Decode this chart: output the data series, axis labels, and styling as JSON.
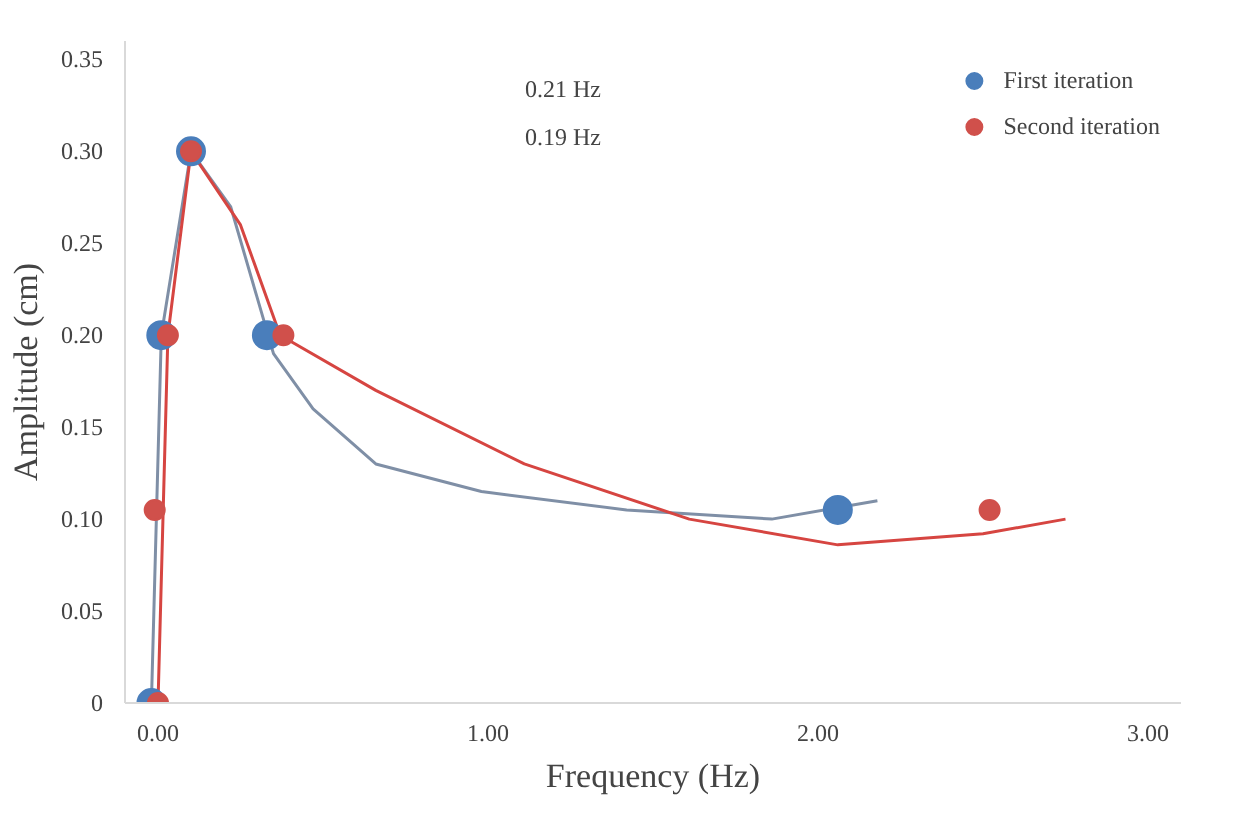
{
  "chart_data": {
    "type": "line",
    "xlabel": "Frequency (Hz)",
    "ylabel": "Amplitude (cm)",
    "xlim": [
      -0.1,
      3.1
    ],
    "ylim": [
      0,
      0.36
    ],
    "xticks": [
      {
        "value": 0,
        "label": "0.00"
      },
      {
        "value": 1,
        "label": "1.00"
      },
      {
        "value": 2,
        "label": "2.00"
      },
      {
        "value": 3,
        "label": "3.00"
      }
    ],
    "yticks": [
      {
        "value": 0,
        "label": "0"
      },
      {
        "value": 0.05,
        "label": "0.05"
      },
      {
        "value": 0.1,
        "label": "0.10"
      },
      {
        "value": 0.15,
        "label": "0.15"
      },
      {
        "value": 0.2,
        "label": "0.20"
      },
      {
        "value": 0.25,
        "label": "0.25"
      },
      {
        "value": 0.3,
        "label": "0.30"
      },
      {
        "value": 0.35,
        "label": "0.35"
      }
    ],
    "grid": false,
    "legend": "top right",
    "marker": "none",
    "annotations": [
      "0.21 Hz",
      "0.19 Hz"
    ],
    "series": [
      {
        "color": "#7f8fa6",
        "x": [
          -0.02,
          0.01,
          0.1,
          0.22,
          0.35,
          0.47,
          0.66,
          0.98,
          1.42,
          1.86,
          2.18
        ],
        "values": [
          0,
          0.2,
          0.3,
          0.27,
          0.19,
          0.16,
          0.13,
          0.115,
          0.105,
          0.1,
          0.11
        ]
      },
      {
        "color": "#d64541",
        "x": [
          0,
          0.03,
          0.1,
          0.25,
          0.37,
          0.66,
          1.11,
          1.61,
          2.06,
          2.5,
          2.75
        ],
        "values": [
          0,
          0.2,
          0.3,
          0.26,
          0.2,
          0.17,
          0.13,
          0.1,
          0.086,
          0.092,
          0.1
        ]
      },
      {
        "type": "scatter",
        "marker": "circle",
        "name": "First iteration",
        "color": "#4a7ebb",
        "x": [
          -0.02,
          0.01,
          0.1,
          0.33,
          2.06
        ],
        "values": [
          0,
          0.2,
          0.3,
          0.2,
          0.105
        ]
      },
      {
        "type": "scatter",
        "marker": "circle",
        "name": "Second iteration",
        "color": "#d0504b",
        "x": [
          0,
          -0.01,
          0.03,
          0.1,
          0.38,
          2.52
        ],
        "values": [
          0,
          0.105,
          0.2,
          0.3,
          0.2,
          0.105
        ]
      }
    ]
  }
}
